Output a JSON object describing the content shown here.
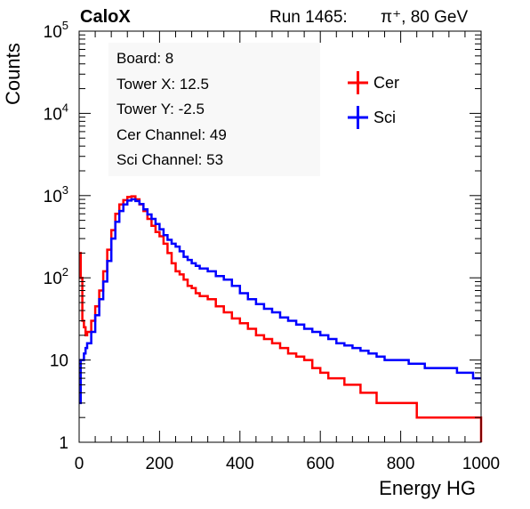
{
  "header": {
    "experiment": "CaloX",
    "run_label": "Run 1465:",
    "beam": "π⁺, 80 GeV"
  },
  "info_box": {
    "lines": [
      "Board: 8",
      "Tower X: 12.5",
      "Tower Y: -2.5",
      "Cer Channel: 49",
      "Sci Channel: 53"
    ]
  },
  "colors": {
    "cer": "#ff0000",
    "sci": "#0000ff"
  },
  "chart_data": {
    "type": "line",
    "step": true,
    "xlabel": "Energy HG",
    "ylabel": "Counts",
    "xlim": [
      0,
      1000
    ],
    "ylim": [
      1,
      100000
    ],
    "yscale": "log",
    "xticks": [
      0,
      200,
      400,
      600,
      800,
      1000
    ],
    "xtick_labels": [
      "0",
      "200",
      "400",
      "600",
      "800",
      "1000"
    ],
    "yticks": [
      1,
      10,
      100,
      1000,
      10000,
      100000
    ],
    "ytick_labels": [
      "1",
      "10",
      "10^2",
      "10^3",
      "10^4",
      "10^5"
    ],
    "grid": false,
    "legend_position": "top-right",
    "series": [
      {
        "name": "Cer",
        "color": "#ff0000",
        "x": [
          0,
          4,
          8,
          12,
          16,
          20,
          30,
          40,
          50,
          60,
          70,
          80,
          90,
          100,
          110,
          120,
          130,
          140,
          150,
          160,
          170,
          180,
          190,
          200,
          210,
          220,
          230,
          240,
          250,
          260,
          270,
          280,
          290,
          300,
          320,
          340,
          360,
          380,
          400,
          420,
          440,
          460,
          480,
          500,
          520,
          540,
          560,
          580,
          600,
          620,
          640,
          660,
          680,
          700,
          720,
          740,
          760,
          780,
          800,
          820,
          840,
          860,
          880,
          900,
          920,
          940,
          960,
          980,
          1000
        ],
        "y": [
          200,
          100,
          30,
          25,
          20,
          22,
          30,
          45,
          70,
          120,
          220,
          380,
          600,
          780,
          880,
          960,
          980,
          900,
          780,
          650,
          520,
          430,
          360,
          320,
          260,
          200,
          150,
          120,
          110,
          95,
          80,
          75,
          65,
          60,
          55,
          45,
          38,
          32,
          28,
          24,
          20,
          18,
          16,
          14,
          12,
          11,
          10,
          8,
          7,
          6,
          6,
          5,
          5,
          4,
          4,
          3,
          3,
          3,
          3,
          3,
          2,
          2,
          2,
          2,
          2,
          2,
          2,
          2,
          1
        ]
      },
      {
        "name": "Sci",
        "color": "#0000ff",
        "x": [
          0,
          4,
          8,
          12,
          16,
          20,
          30,
          40,
          50,
          60,
          70,
          80,
          90,
          100,
          110,
          120,
          130,
          140,
          150,
          160,
          170,
          180,
          190,
          200,
          210,
          220,
          230,
          240,
          250,
          260,
          270,
          280,
          290,
          300,
          320,
          340,
          360,
          380,
          400,
          420,
          440,
          460,
          480,
          500,
          520,
          540,
          560,
          580,
          600,
          620,
          640,
          660,
          680,
          700,
          720,
          740,
          760,
          780,
          800,
          820,
          840,
          860,
          880,
          900,
          920,
          940,
          960,
          980,
          1000
        ],
        "y": [
          3,
          10,
          10,
          12,
          14,
          16,
          22,
          35,
          55,
          90,
          160,
          300,
          480,
          650,
          780,
          870,
          900,
          860,
          790,
          680,
          590,
          520,
          450,
          390,
          330,
          290,
          260,
          240,
          210,
          180,
          165,
          150,
          140,
          130,
          120,
          105,
          95,
          80,
          65,
          55,
          48,
          42,
          38,
          33,
          30,
          27,
          24,
          22,
          20,
          18,
          16,
          15,
          14,
          13,
          12,
          11,
          10,
          10,
          10,
          9,
          9,
          8,
          8,
          8,
          8,
          7,
          7,
          6,
          6
        ]
      }
    ]
  }
}
